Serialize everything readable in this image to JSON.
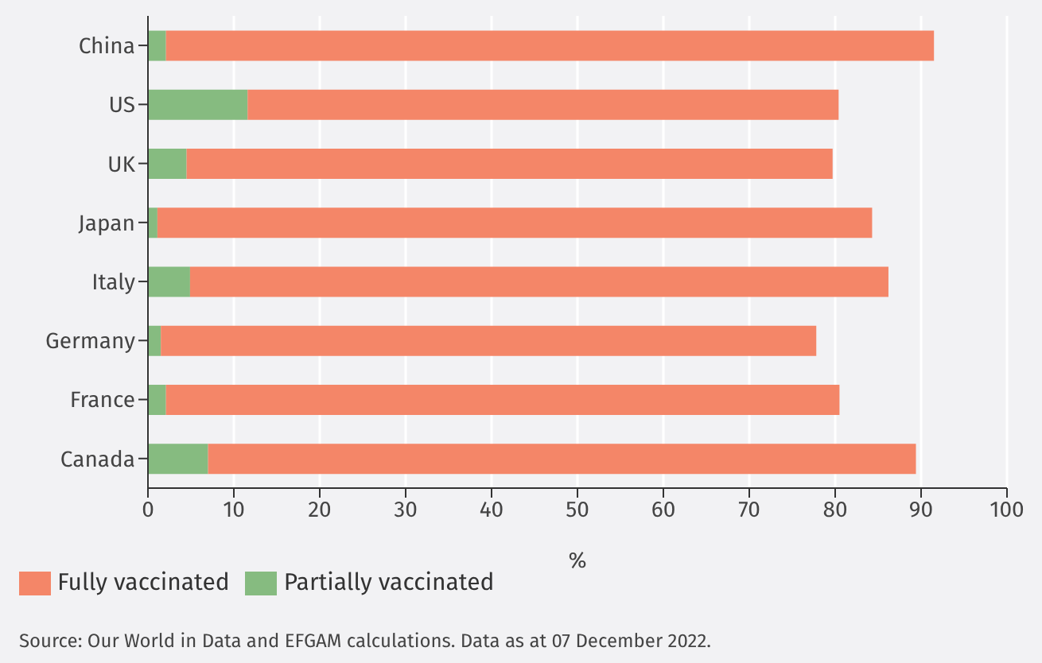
{
  "chart_data": {
    "type": "bar",
    "orientation": "horizontal",
    "stacked": true,
    "xlabel": "%",
    "categories": [
      "China",
      "US",
      "UK",
      "Japan",
      "Italy",
      "Germany",
      "France",
      "Canada"
    ],
    "series": [
      {
        "name": "Partially vaccinated",
        "color": "#86bb80",
        "values": [
          2.1,
          11.6,
          4.5,
          1.1,
          4.9,
          1.5,
          2.1,
          7.0
        ]
      },
      {
        "name": "Fully vaccinated",
        "color": "#f48668",
        "values": [
          89.4,
          68.8,
          75.2,
          83.2,
          81.3,
          76.3,
          78.4,
          82.4
        ]
      }
    ],
    "xlim": [
      0,
      100
    ],
    "xticks": [
      0,
      10,
      20,
      30,
      40,
      50,
      60,
      70,
      80,
      90,
      100
    ],
    "grid": "x",
    "legend": "bottom left",
    "annotations": [
      "Source: Our World in Data and EFGAM calculations. Data as at 07 December 2022."
    ]
  }
}
